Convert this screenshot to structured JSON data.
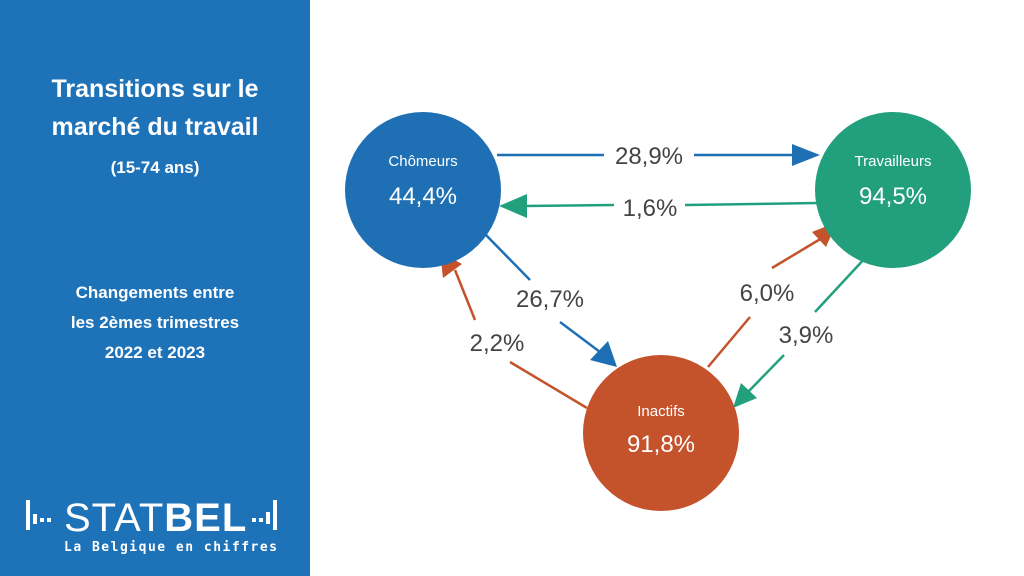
{
  "panel": {
    "title_line1": "Transitions sur le",
    "title_line2": "marché du travail",
    "subtitle": "(15-74 ans)",
    "changes_line1": "Changements entre",
    "changes_line2": "les 2èmes trimestres",
    "changes_line3": "2022 et 2023",
    "logo": {
      "word_light": "STAT",
      "word_bold": "BEL",
      "tagline": "La Belgique en chiffres"
    }
  },
  "colors": {
    "panel": "#1d72b8",
    "chomeurs": "#1f6fb5",
    "travailleurs": "#22a07e",
    "inactifs": "#c4522a",
    "label_text": "#444444"
  },
  "nodes": {
    "chomeurs": {
      "label": "Chômeurs",
      "value": "44,4%"
    },
    "travailleurs": {
      "label": "Travailleurs",
      "value": "94,5%"
    },
    "inactifs": {
      "label": "Inactifs",
      "value": "91,8%"
    }
  },
  "flows": {
    "chomeurs_to_travailleurs": "28,9%",
    "travailleurs_to_chomeurs": "1,6%",
    "chomeurs_to_inactifs": "26,7%",
    "inactifs_to_chomeurs": "2,2%",
    "inactifs_to_travailleurs": "6,0%",
    "travailleurs_to_inactifs": "3,9%"
  }
}
